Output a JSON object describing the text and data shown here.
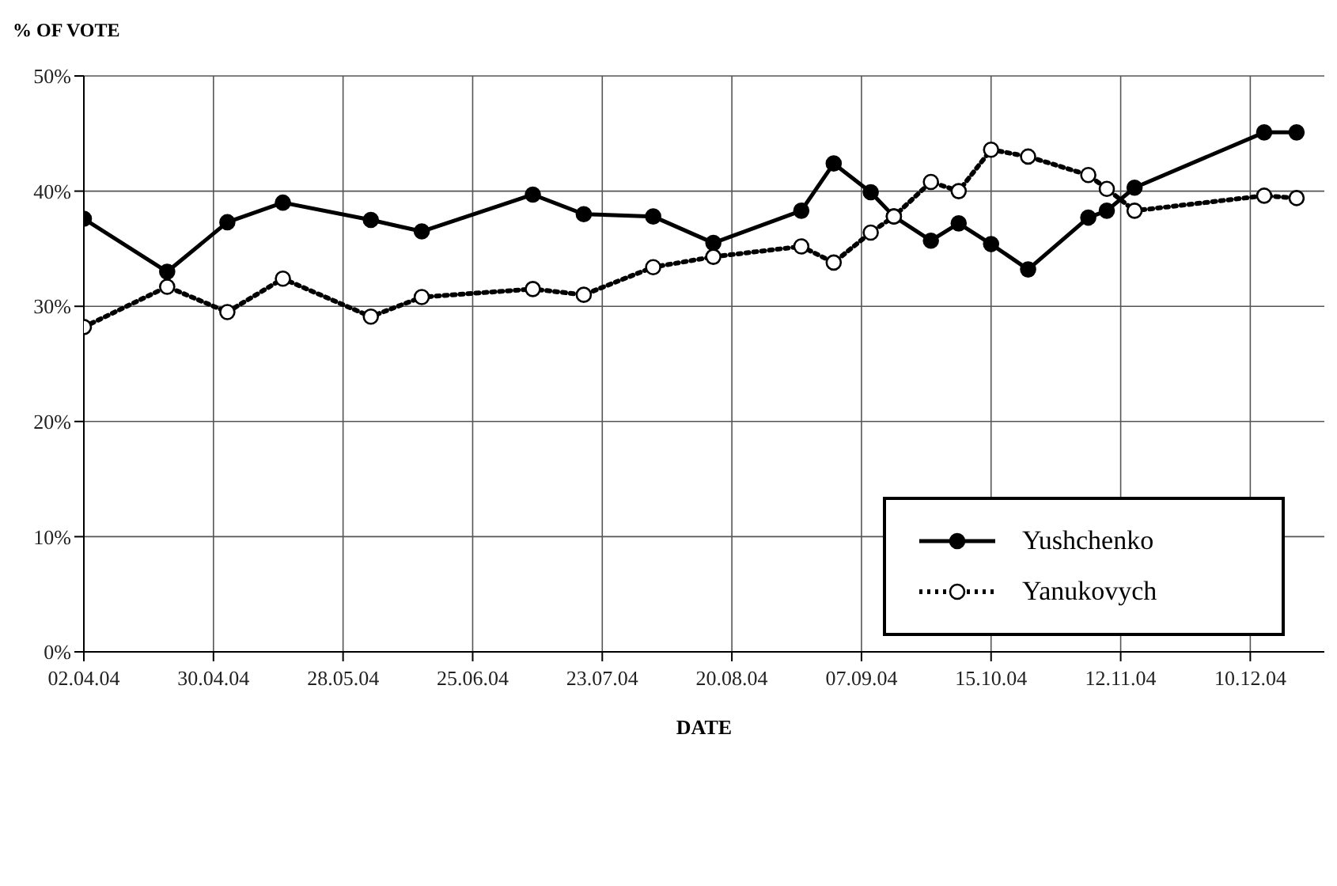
{
  "chart_data": {
    "type": "line",
    "ylabel": "% OF VOTE",
    "xlabel": "DATE",
    "x": [
      "2004-04-02",
      "2004-04-20",
      "2004-05-03",
      "2004-05-15",
      "2004-06-03",
      "2004-06-14",
      "2004-07-08",
      "2004-07-19",
      "2004-08-03",
      "2004-08-16",
      "2004-09-04",
      "2004-09-11",
      "2004-09-19",
      "2004-09-24",
      "2004-10-02",
      "2004-10-08",
      "2004-10-15",
      "2004-10-23",
      "2004-11-05",
      "2004-11-09",
      "2004-11-15",
      "2004-12-13",
      "2004-12-20"
    ],
    "series": [
      {
        "name": "Yushchenko",
        "color": "#000000",
        "line_style": "solid",
        "values": [
          37.6,
          33.0,
          37.3,
          39.0,
          37.5,
          36.5,
          39.7,
          38.0,
          37.8,
          35.5,
          38.3,
          42.4,
          39.9,
          37.8,
          35.7,
          37.2,
          35.4,
          33.2,
          37.7,
          38.3,
          40.3,
          45.1,
          45.1
        ]
      },
      {
        "name": "Yanukovych",
        "color": "#000000",
        "line_style": "dotted",
        "values": [
          28.2,
          31.7,
          29.5,
          32.4,
          29.1,
          30.8,
          31.5,
          31.0,
          33.4,
          34.3,
          35.2,
          33.8,
          36.4,
          37.8,
          40.8,
          40.0,
          43.6,
          43.0,
          41.4,
          40.2,
          38.3,
          39.6,
          39.4
        ]
      }
    ],
    "xlim": [
      "2004-04-02",
      "2004-12-26"
    ],
    "xticks": [
      {
        "value": "2004-04-02",
        "label": "02.04.04"
      },
      {
        "value": "2004-04-30",
        "label": "30.04.04"
      },
      {
        "value": "2004-05-28",
        "label": "28.05.04"
      },
      {
        "value": "2004-06-25",
        "label": "25.06.04"
      },
      {
        "value": "2004-07-23",
        "label": "23.07.04"
      },
      {
        "value": "2004-08-20",
        "label": "20.08.04"
      },
      {
        "value": "2004-09-17",
        "label": "07.09.04"
      },
      {
        "value": "2004-10-15",
        "label": "15.10.04"
      },
      {
        "value": "2004-11-12",
        "label": "12.11.04"
      },
      {
        "value": "2004-12-10",
        "label": "10.12.04"
      }
    ],
    "ylim": [
      0,
      50
    ],
    "yticks": [
      {
        "value": 0,
        "label": "0%"
      },
      {
        "value": 10,
        "label": "10%"
      },
      {
        "value": 20,
        "label": "20%"
      },
      {
        "value": 30,
        "label": "30%"
      },
      {
        "value": 40,
        "label": "40%"
      },
      {
        "value": 50,
        "label": "50%"
      }
    ],
    "grid": true,
    "legend": "bottom right",
    "marker": "circle"
  }
}
